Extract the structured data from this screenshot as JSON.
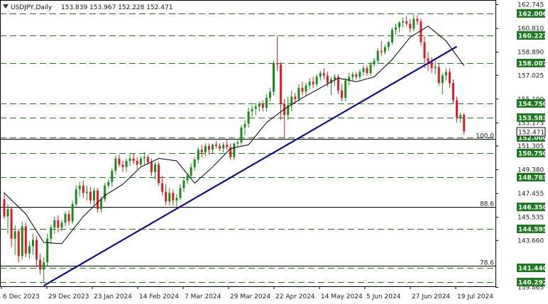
{
  "chart_data": {
    "type": "candlestick",
    "symbol_label": "USDJPY,Daily",
    "ohlc_label": "153.839 153.967 152.228 152.471",
    "x_tick_labels": [
      "6 Dec 2023",
      "29 Dec 2023",
      "23 Jan 2024",
      "14 Feb 2024",
      "7 Mar 2024",
      "29 Mar 2024",
      "22 Apr 2024",
      "14 May 2024",
      "5 Jun 2024",
      "27 Jun 2024",
      "19 Jul 2024"
    ],
    "y_tick_labels": [
      {
        "value": 162.745,
        "label": "162.745"
      },
      {
        "value": 160.81,
        "label": "160.810"
      },
      {
        "value": 158.89,
        "label": "158.890"
      },
      {
        "value": 157.025,
        "label": "157.025"
      },
      {
        "value": 155.1,
        "label": "155.100"
      },
      {
        "value": 153.175,
        "label": "153.175"
      },
      {
        "value": 151.305,
        "label": "151.305"
      },
      {
        "value": 149.38,
        "label": "149.380"
      },
      {
        "value": 147.455,
        "label": "147.455"
      },
      {
        "value": 145.535,
        "label": "145.535"
      },
      {
        "value": 143.66,
        "label": "143.660"
      },
      {
        "value": 139.865,
        "label": "139.865"
      }
    ],
    "ylim": [
      139.865,
      162.745
    ],
    "current_price": {
      "value": 152.471,
      "label": "152.471"
    },
    "support_resistance_levels": [
      {
        "value": 162.006,
        "label": "162.006"
      },
      {
        "value": 160.227,
        "label": "160.227"
      },
      {
        "value": 158.007,
        "label": "158.007"
      },
      {
        "value": 154.75,
        "label": "154.750"
      },
      {
        "value": 153.583,
        "label": "153.583"
      },
      {
        "value": 152.0,
        "label": "152.000"
      },
      {
        "value": 150.75,
        "label": "150.750"
      },
      {
        "value": 148.783,
        "label": "148.783"
      },
      {
        "value": 146.35,
        "label": "146.350"
      },
      {
        "value": 144.595,
        "label": "144.595"
      },
      {
        "value": 141.44,
        "label": "141.440"
      },
      {
        "value": 140.292,
        "label": "140.292"
      }
    ],
    "fibonacci_levels": [
      {
        "value": 151.9,
        "label": "100.0"
      },
      {
        "value": 146.35,
        "label": "88.6"
      },
      {
        "value": 141.6,
        "label": "78.6"
      }
    ],
    "trendline": {
      "start": {
        "bar": 11,
        "price": 140.0
      },
      "end": {
        "bar": 126,
        "price": 159.35
      }
    },
    "moving_average": [
      {
        "bar": 0,
        "price": 147.5
      },
      {
        "bar": 6,
        "price": 145.8
      },
      {
        "bar": 11,
        "price": 143.5
      },
      {
        "bar": 16,
        "price": 143.4
      },
      {
        "bar": 22,
        "price": 145.6
      },
      {
        "bar": 28,
        "price": 147.3
      },
      {
        "bar": 33,
        "price": 148.2
      },
      {
        "bar": 38,
        "price": 149.6
      },
      {
        "bar": 43,
        "price": 150.3
      },
      {
        "bar": 48,
        "price": 150.1
      },
      {
        "bar": 53,
        "price": 148.3
      },
      {
        "bar": 58,
        "price": 149.6
      },
      {
        "bar": 63,
        "price": 151.1
      },
      {
        "bar": 68,
        "price": 151.4
      },
      {
        "bar": 73,
        "price": 153.2
      },
      {
        "bar": 78,
        "price": 154.3
      },
      {
        "bar": 83,
        "price": 155.2
      },
      {
        "bar": 88,
        "price": 156.0
      },
      {
        "bar": 93,
        "price": 156.8
      },
      {
        "bar": 98,
        "price": 156.5
      },
      {
        "bar": 103,
        "price": 156.9
      },
      {
        "bar": 108,
        "price": 158.3
      },
      {
        "bar": 113,
        "price": 160.1
      },
      {
        "bar": 118,
        "price": 161.0
      },
      {
        "bar": 123,
        "price": 159.8
      },
      {
        "bar": 128,
        "price": 157.8
      }
    ],
    "candles": [
      [
        147.0,
        147.6,
        145.4,
        145.6
      ],
      [
        145.6,
        146.6,
        144.2,
        146.2
      ],
      [
        146.2,
        146.4,
        143.1,
        143.8
      ],
      [
        143.8,
        144.9,
        142.5,
        144.4
      ],
      [
        144.4,
        144.6,
        141.9,
        142.4
      ],
      [
        142.4,
        145.2,
        142.1,
        144.8
      ],
      [
        144.8,
        145.1,
        142.3,
        142.6
      ],
      [
        142.6,
        143.6,
        142.2,
        143.2
      ],
      [
        143.2,
        144.2,
        142.5,
        143.7
      ],
      [
        143.7,
        144.0,
        141.5,
        142.1
      ],
      [
        142.1,
        142.6,
        140.9,
        141.3
      ],
      [
        141.3,
        142.3,
        140.3,
        141.9
      ],
      [
        141.9,
        144.2,
        141.6,
        143.8
      ],
      [
        143.8,
        144.9,
        143.4,
        144.7
      ],
      [
        144.7,
        145.6,
        144.2,
        145.3
      ],
      [
        145.3,
        145.7,
        144.3,
        144.7
      ],
      [
        144.7,
        145.3,
        144.4,
        145.1
      ],
      [
        145.1,
        146.0,
        144.8,
        145.8
      ],
      [
        145.8,
        146.1,
        144.9,
        145.2
      ],
      [
        145.2,
        146.9,
        145.0,
        146.6
      ],
      [
        146.6,
        148.1,
        146.4,
        147.8
      ],
      [
        147.8,
        148.4,
        147.2,
        148.1
      ],
      [
        148.1,
        148.5,
        147.1,
        147.5
      ],
      [
        147.5,
        148.1,
        146.9,
        147.6
      ],
      [
        147.6,
        148.0,
        146.6,
        146.9
      ],
      [
        146.9,
        147.9,
        146.5,
        147.7
      ],
      [
        147.7,
        147.9,
        145.9,
        146.2
      ],
      [
        146.2,
        147.2,
        145.9,
        147.0
      ],
      [
        147.0,
        148.3,
        146.8,
        148.1
      ],
      [
        148.1,
        148.6,
        147.9,
        148.4
      ],
      [
        148.4,
        149.5,
        148.0,
        149.3
      ],
      [
        149.3,
        150.5,
        149.0,
        150.3
      ],
      [
        150.3,
        150.6,
        149.6,
        149.8
      ],
      [
        149.8,
        150.1,
        149.2,
        149.6
      ],
      [
        149.6,
        150.3,
        149.2,
        150.1
      ],
      [
        150.1,
        150.6,
        149.7,
        150.3
      ],
      [
        150.3,
        150.7,
        149.8,
        150.1
      ],
      [
        150.1,
        150.4,
        149.4,
        149.8
      ],
      [
        149.8,
        150.5,
        149.6,
        150.3
      ],
      [
        150.3,
        150.8,
        149.8,
        150.4
      ],
      [
        150.4,
        150.6,
        149.8,
        150.0
      ],
      [
        150.0,
        150.3,
        148.9,
        149.2
      ],
      [
        149.2,
        150.0,
        148.6,
        149.8
      ],
      [
        149.8,
        150.0,
        148.1,
        148.3
      ],
      [
        148.3,
        148.9,
        147.3,
        147.6
      ],
      [
        147.6,
        148.2,
        146.5,
        146.8
      ],
      [
        146.8,
        147.9,
        146.5,
        147.5
      ],
      [
        147.5,
        147.8,
        146.5,
        146.9
      ],
      [
        146.9,
        147.4,
        146.4,
        147.1
      ],
      [
        147.1,
        148.2,
        146.9,
        147.9
      ],
      [
        147.9,
        148.8,
        147.6,
        148.5
      ],
      [
        148.5,
        149.1,
        148.2,
        148.9
      ],
      [
        148.9,
        149.9,
        148.7,
        149.6
      ],
      [
        149.6,
        150.4,
        149.3,
        150.2
      ],
      [
        150.2,
        151.2,
        149.9,
        151.0
      ],
      [
        151.0,
        151.4,
        150.4,
        150.8
      ],
      [
        150.8,
        151.5,
        150.5,
        151.3
      ],
      [
        151.3,
        151.5,
        150.6,
        151.0
      ],
      [
        151.0,
        151.5,
        150.7,
        151.4
      ],
      [
        151.4,
        151.7,
        151.1,
        151.3
      ],
      [
        151.3,
        151.5,
        150.9,
        151.1
      ],
      [
        151.1,
        151.6,
        150.8,
        151.4
      ],
      [
        151.4,
        151.8,
        151.0,
        151.2
      ],
      [
        151.2,
        151.5,
        150.2,
        150.4
      ],
      [
        150.4,
        151.6,
        150.2,
        151.5
      ],
      [
        151.5,
        151.8,
        151.2,
        151.6
      ],
      [
        151.6,
        153.0,
        151.4,
        152.8
      ],
      [
        152.8,
        153.4,
        152.2,
        153.1
      ],
      [
        153.1,
        154.4,
        152.8,
        154.1
      ],
      [
        154.1,
        154.6,
        153.7,
        154.3
      ],
      [
        154.3,
        154.8,
        153.8,
        154.5
      ],
      [
        154.5,
        154.9,
        154.1,
        154.7
      ],
      [
        154.7,
        155.0,
        154.1,
        154.4
      ],
      [
        154.4,
        155.5,
        154.1,
        155.2
      ],
      [
        155.2,
        156.0,
        154.9,
        155.7
      ],
      [
        155.7,
        158.2,
        155.4,
        158.0
      ],
      [
        158.0,
        160.2,
        157.4,
        157.9
      ],
      [
        157.9,
        158.1,
        153.4,
        154.7
      ],
      [
        154.7,
        155.1,
        151.9,
        153.8
      ],
      [
        153.8,
        155.3,
        153.4,
        154.6
      ],
      [
        154.6,
        155.8,
        154.1,
        155.3
      ],
      [
        155.3,
        155.6,
        154.7,
        155.1
      ],
      [
        155.1,
        156.3,
        154.9,
        156.0
      ],
      [
        156.0,
        156.5,
        155.4,
        155.7
      ],
      [
        155.7,
        156.4,
        155.4,
        156.2
      ],
      [
        156.2,
        156.8,
        155.9,
        156.5
      ],
      [
        156.5,
        156.9,
        156.0,
        156.3
      ],
      [
        156.3,
        157.1,
        156.1,
        156.9
      ],
      [
        156.9,
        157.4,
        156.6,
        157.2
      ],
      [
        157.2,
        157.6,
        156.7,
        157.0
      ],
      [
        157.0,
        157.3,
        156.1,
        156.4
      ],
      [
        156.4,
        156.9,
        155.4,
        156.7
      ],
      [
        156.7,
        157.1,
        156.2,
        156.9
      ],
      [
        156.9,
        157.1,
        155.5,
        155.8
      ],
      [
        155.8,
        156.3,
        154.9,
        155.2
      ],
      [
        155.2,
        156.8,
        154.9,
        156.6
      ],
      [
        156.6,
        157.2,
        156.2,
        156.9
      ],
      [
        156.9,
        157.3,
        156.6,
        157.1
      ],
      [
        157.1,
        157.3,
        156.7,
        156.9
      ],
      [
        156.9,
        157.5,
        156.7,
        157.3
      ],
      [
        157.3,
        157.8,
        157.0,
        157.6
      ],
      [
        157.6,
        157.8,
        157.0,
        157.2
      ],
      [
        157.2,
        158.1,
        157.0,
        157.9
      ],
      [
        157.9,
        158.4,
        157.7,
        158.2
      ],
      [
        158.2,
        159.2,
        158.0,
        159.0
      ],
      [
        159.0,
        159.8,
        158.6,
        158.9
      ],
      [
        158.9,
        159.5,
        158.7,
        159.3
      ],
      [
        159.3,
        159.8,
        159.0,
        159.7
      ],
      [
        159.7,
        160.9,
        159.5,
        160.7
      ],
      [
        160.7,
        161.2,
        160.3,
        160.9
      ],
      [
        160.9,
        161.4,
        160.5,
        161.3
      ],
      [
        161.3,
        161.7,
        160.9,
        161.4
      ],
      [
        161.4,
        161.8,
        161.0,
        161.2
      ],
      [
        161.2,
        161.6,
        160.5,
        160.8
      ],
      [
        160.8,
        161.9,
        160.6,
        161.6
      ],
      [
        161.6,
        161.9,
        161.1,
        161.4
      ],
      [
        161.4,
        161.6,
        159.4,
        159.7
      ],
      [
        159.7,
        160.2,
        157.6,
        158.4
      ],
      [
        158.4,
        158.9,
        157.4,
        158.1
      ],
      [
        158.1,
        158.5,
        157.2,
        157.6
      ],
      [
        157.6,
        158.2,
        157.1,
        157.7
      ],
      [
        157.7,
        158.0,
        156.2,
        156.4
      ],
      [
        156.4,
        157.2,
        155.5,
        157.0
      ],
      [
        157.0,
        157.6,
        156.6,
        157.3
      ],
      [
        157.3,
        157.6,
        156.0,
        156.4
      ],
      [
        156.4,
        156.7,
        154.7,
        155.0
      ],
      [
        155.0,
        155.3,
        153.2,
        153.6
      ],
      [
        153.6,
        154.0,
        153.2,
        153.8
      ],
      [
        153.839,
        153.967,
        152.228,
        152.471
      ]
    ]
  }
}
